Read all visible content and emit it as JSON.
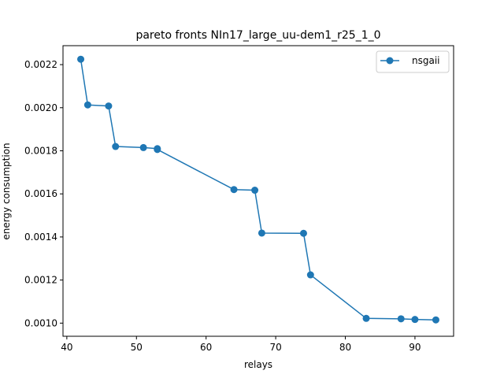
{
  "chart_data": {
    "type": "line",
    "title": "pareto fronts NIn17_large_uu-dem1_r25_1_0",
    "xlabel": "relays",
    "ylabel": "energy consumption",
    "xlim": [
      39.45,
      95.55
    ],
    "ylim": [
      0.000939,
      0.002288
    ],
    "x_ticks": [
      40,
      50,
      60,
      70,
      80,
      90
    ],
    "y_ticks": [
      0.001,
      0.0012,
      0.0014,
      0.0016,
      0.0018,
      0.002,
      0.0022
    ],
    "x_tick_labels": [
      "40",
      "50",
      "60",
      "70",
      "80",
      "90"
    ],
    "y_tick_labels": [
      "0.0010",
      "0.0012",
      "0.0014",
      "0.0016",
      "0.0018",
      "0.0020",
      "0.0022"
    ],
    "grid": false,
    "legend_position": "top-right",
    "series": [
      {
        "name": "nsgaii",
        "color": "#1f77b4",
        "marker": "circle",
        "x": [
          42,
          43,
          46,
          47,
          51,
          53,
          53,
          64,
          67,
          68,
          74,
          75,
          83,
          88,
          90,
          93
        ],
        "y": [
          0.002225,
          0.002013,
          0.002008,
          0.00182,
          0.001815,
          0.00181,
          0.001806,
          0.00162,
          0.001617,
          0.001418,
          0.001417,
          0.001224,
          0.001022,
          0.00102,
          0.001017,
          0.001015
        ]
      }
    ]
  }
}
